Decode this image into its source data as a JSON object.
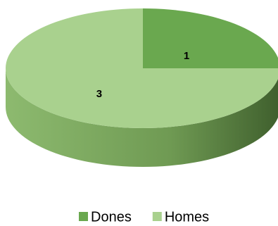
{
  "chart_data": {
    "type": "pie",
    "categories": [
      "Dones",
      "Homes"
    ],
    "values": [
      1,
      3
    ],
    "colors": [
      "#6aa84f",
      "#a9d18e"
    ],
    "legend": "bottom",
    "data_labels": true
  }
}
